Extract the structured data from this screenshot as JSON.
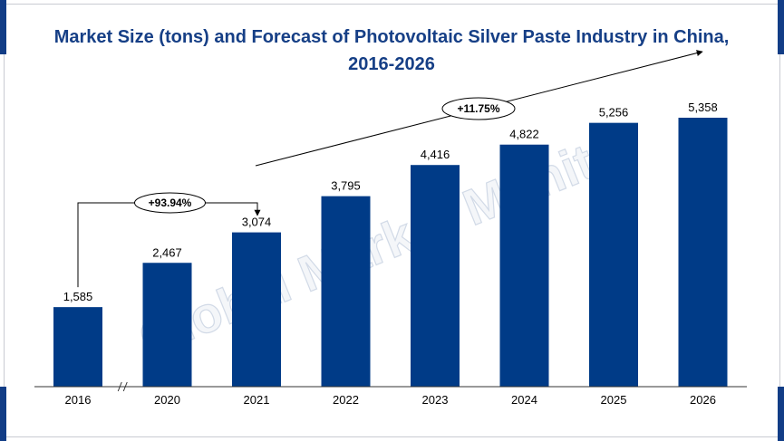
{
  "chart_data": {
    "type": "bar",
    "title_line1": "Market Size (tons) and Forecast of Photovoltaic Silver Paste Industry in China,",
    "title_line2": "2016-2026",
    "categories": [
      "2016",
      "2020",
      "2021",
      "2022",
      "2023",
      "2024",
      "2025",
      "2026"
    ],
    "values": [
      1585,
      2467,
      3074,
      3795,
      4416,
      4822,
      5256,
      5358
    ],
    "value_labels": [
      "1,585",
      "2,467",
      "3,074",
      "3,795",
      "4,416",
      "4,822",
      "5,256",
      "5,358"
    ],
    "ylim": [
      0,
      5358
    ],
    "grid": false,
    "axis_break_between": [
      "2016",
      "2020"
    ],
    "annotations": [
      {
        "text": "+93.94%",
        "from": "2016",
        "to": "2021"
      },
      {
        "text": "+11.75%",
        "from": "2021",
        "to": "2026"
      }
    ]
  },
  "watermark": "Global Market Monitor",
  "colors": {
    "bar": "#003b87",
    "title": "#163f86",
    "corner": "#123d86"
  }
}
